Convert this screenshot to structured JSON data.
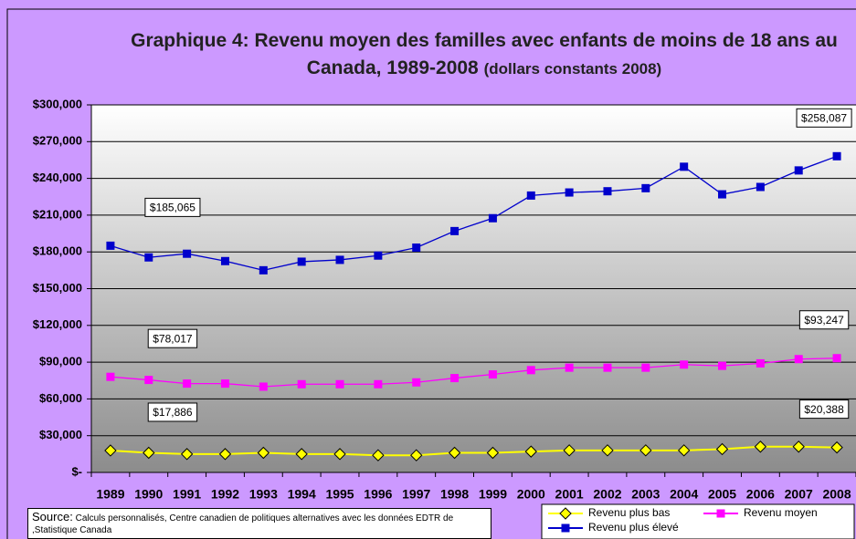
{
  "chart_data": {
    "type": "line",
    "title": "Graphique 4: Revenu moyen des familles avec enfants de moins de 18 ans au Canada, 1989-2008",
    "subtitle": "(dollars constants 2008)",
    "categories": [
      "1989",
      "1990",
      "1991",
      "1992",
      "1993",
      "1994",
      "1995",
      "1996",
      "1997",
      "1998",
      "1999",
      "2000",
      "2001",
      "2002",
      "2003",
      "2004",
      "2005",
      "2006",
      "2007",
      "2008"
    ],
    "series": [
      {
        "name": "Revenu plus bas",
        "color": "#ffff00",
        "marker": "diamond",
        "values": [
          17886,
          16000,
          15000,
          15000,
          16000,
          15000,
          15000,
          14000,
          14000,
          16000,
          16000,
          17000,
          18000,
          18000,
          18000,
          18000,
          19000,
          21000,
          21000,
          20388
        ],
        "value_labels": [
          "$17,886",
          null,
          null,
          null,
          null,
          null,
          null,
          null,
          null,
          null,
          null,
          null,
          null,
          null,
          null,
          null,
          null,
          null,
          null,
          "$20,388"
        ]
      },
      {
        "name": "Revenu moyen",
        "color": "#ff00ff",
        "marker": "square",
        "values": [
          78017,
          75500,
          72500,
          72500,
          70000,
          72000,
          72000,
          72000,
          73500,
          77000,
          80000,
          83500,
          85500,
          85500,
          85500,
          88000,
          87000,
          89000,
          92500,
          93247
        ],
        "value_labels": [
          "$78,017",
          null,
          null,
          null,
          null,
          null,
          null,
          null,
          null,
          null,
          null,
          null,
          null,
          null,
          null,
          null,
          null,
          null,
          null,
          "$93,247"
        ]
      },
      {
        "name": "Revenu plus élevé",
        "color": "#0000cc",
        "marker": "square",
        "values": [
          185065,
          175500,
          178500,
          172500,
          165000,
          172000,
          173500,
          177000,
          183500,
          197000,
          207500,
          226000,
          228500,
          229500,
          232000,
          249500,
          227000,
          233000,
          246500,
          258087
        ],
        "value_labels": [
          "$185,065",
          null,
          null,
          null,
          null,
          null,
          null,
          null,
          null,
          null,
          null,
          null,
          null,
          null,
          null,
          null,
          null,
          null,
          null,
          "$258,087"
        ]
      }
    ],
    "ylim": [
      0,
      300000
    ],
    "yticks": [
      {
        "value": 0,
        "label": "$-"
      },
      {
        "value": 30000,
        "label": "$30,000"
      },
      {
        "value": 60000,
        "label": "$60,000"
      },
      {
        "value": 90000,
        "label": "$90,000"
      },
      {
        "value": 120000,
        "label": "$120,000"
      },
      {
        "value": 150000,
        "label": "$150,000"
      },
      {
        "value": 180000,
        "label": "$180,000"
      },
      {
        "value": 210000,
        "label": "$210,000"
      },
      {
        "value": 240000,
        "label": "$240,000"
      },
      {
        "value": 270000,
        "label": "$270,000"
      },
      {
        "value": 300000,
        "label": "$300,000"
      }
    ],
    "grid": true,
    "source_label": "Source:",
    "source": "Calculs personnalisés, Centre canadien de politiques alternatives avec les données EDTR de ,Statistique Canada"
  }
}
